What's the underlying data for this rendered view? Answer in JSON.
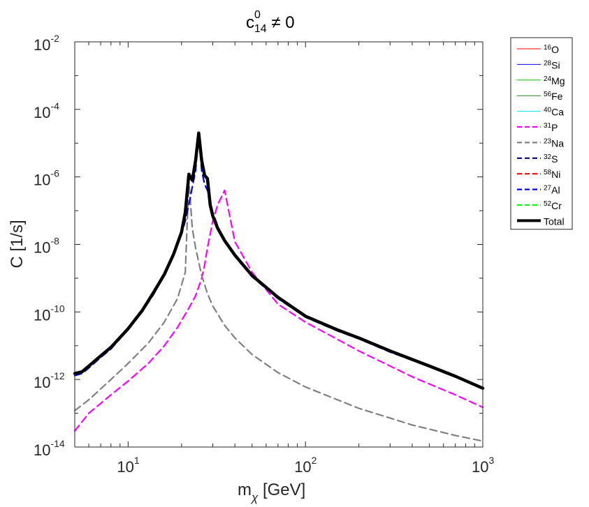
{
  "chart_data": {
    "type": "line",
    "title": {
      "base": "c",
      "sup": "0",
      "sub": "14",
      "rest": " ≠ 0"
    },
    "xlabel": {
      "base": "m",
      "sub": "χ",
      "rest": " [GeV]"
    },
    "ylabel": "C [1/s]",
    "xscale": "log",
    "yscale": "log",
    "xlim": [
      5,
      1000
    ],
    "ylim": [
      1e-14,
      0.01
    ],
    "x_ticks": [
      {
        "base": "10",
        "exp": "1"
      },
      {
        "base": "10",
        "exp": "2"
      },
      {
        "base": "10",
        "exp": "3"
      }
    ],
    "y_ticks": [
      {
        "base": "10",
        "exp": "-14"
      },
      {
        "base": "10",
        "exp": "-12"
      },
      {
        "base": "10",
        "exp": "-10"
      },
      {
        "base": "10",
        "exp": "-8"
      },
      {
        "base": "10",
        "exp": "-6"
      },
      {
        "base": "10",
        "exp": "-4"
      },
      {
        "base": "10",
        "exp": "-2"
      }
    ],
    "legend_position": "outside-right",
    "legend": [
      {
        "sup": "16",
        "el": "O",
        "color": "#ff0000",
        "style": "solid"
      },
      {
        "sup": "28",
        "el": "Si",
        "color": "#0000ff",
        "style": "solid"
      },
      {
        "sup": "24",
        "el": "Mg",
        "color": "#00c000",
        "style": "solid"
      },
      {
        "sup": "56",
        "el": "Fe",
        "color": "#208020",
        "style": "solid"
      },
      {
        "sup": "40",
        "el": "Ca",
        "color": "#00e5ee",
        "style": "solid"
      },
      {
        "sup": "31",
        "el": "P",
        "color": "#ff00ff",
        "style": "dashed"
      },
      {
        "sup": "23",
        "el": "Na",
        "color": "#808080",
        "style": "dashed"
      },
      {
        "sup": "32",
        "el": "S",
        "color": "#00007f",
        "style": "dashed"
      },
      {
        "sup": "58",
        "el": "Ni",
        "color": "#ff0000",
        "style": "dashed"
      },
      {
        "sup": "27",
        "el": "Al",
        "color": "#0000ff",
        "style": "dashed"
      },
      {
        "sup": "52",
        "el": "Cr",
        "color": "#00ff00",
        "style": "dashed"
      },
      {
        "sup": "",
        "el": "Total",
        "color": "#000000",
        "style": "thick"
      }
    ],
    "series": [
      {
        "name": "31P",
        "color": "#ff00ff",
        "style": "dashed",
        "x": [
          5,
          6,
          8,
          10,
          13,
          16,
          19,
          22,
          24,
          26,
          27,
          28,
          29,
          30,
          32,
          35,
          40,
          50,
          70,
          100,
          200,
          400,
          700,
          1000
        ],
        "y": [
          3e-14,
          1e-13,
          3.5e-13,
          9e-13,
          3e-12,
          1e-11,
          3.5e-11,
          1.3e-10,
          3e-10,
          1e-09,
          2.5e-09,
          8e-09,
          2e-08,
          5e-08,
          1.5e-07,
          4e-07,
          1.2e-08,
          1.5e-09,
          1.7e-10,
          5e-11,
          7e-12,
          1.2e-12,
          3.5e-13,
          1.5e-13
        ]
      },
      {
        "name": "23Na",
        "color": "#808080",
        "style": "dashed",
        "x": [
          5,
          6,
          8,
          10,
          13,
          16,
          19,
          21,
          22,
          23,
          24,
          25,
          26,
          28,
          30,
          35,
          40,
          50,
          70,
          100,
          200,
          400,
          700,
          1000
        ],
        "y": [
          1.2e-13,
          2.5e-13,
          1e-12,
          3e-12,
          1.2e-11,
          5e-11,
          2.5e-10,
          1.5e-09,
          8e-07,
          3e-08,
          8e-09,
          3e-09,
          1.2e-09,
          3.5e-10,
          1.5e-10,
          4e-11,
          1.7e-11,
          5.5e-12,
          1.6e-12,
          6e-13,
          1.4e-13,
          4.5e-14,
          2.2e-14,
          1.5e-14
        ]
      },
      {
        "name": "27Al",
        "color": "#0000ff",
        "style": "dashed",
        "x": [
          5,
          5.5,
          6,
          7,
          8,
          10,
          12,
          14,
          16,
          18,
          20,
          21,
          22,
          23,
          24,
          25,
          26,
          27,
          28,
          29,
          30,
          32,
          35,
          40,
          50,
          70,
          100,
          150,
          200,
          300,
          500,
          700,
          1000
        ],
        "y": [
          1.3e-12,
          1.5e-12,
          2.2e-12,
          4.5e-12,
          8e-12,
          3e-11,
          1e-10,
          3.5e-10,
          1.2e-09,
          4.5e-09,
          2e-08,
          5e-08,
          1.5e-07,
          5e-07,
          1.5e-06,
          1.8e-05,
          1.5e-06,
          6e-07,
          4e-07,
          2e-07,
          9e-08,
          3.5e-08,
          1.3e-08,
          4.5e-09,
          1.1e-09,
          2.5e-10,
          7e-11,
          2.8e-11,
          1.6e-11,
          6.5e-12,
          2.4e-12,
          1.2e-12,
          5.5e-13
        ]
      },
      {
        "name": "Total",
        "color": "#000000",
        "style": "thick",
        "x": [
          5,
          5.5,
          6,
          7,
          8,
          10,
          12,
          14,
          16,
          18,
          20,
          21,
          22,
          23,
          24,
          25,
          26,
          27,
          28,
          29,
          30,
          32,
          35,
          40,
          50,
          70,
          100,
          150,
          200,
          300,
          500,
          700,
          1000
        ],
        "y": [
          1.5e-12,
          1.7e-12,
          2.5e-12,
          5e-12,
          9e-12,
          3.2e-11,
          1.1e-10,
          4e-10,
          1.3e-09,
          5e-09,
          2.3e-08,
          9e-08,
          1.2e-06,
          8e-07,
          3e-06,
          2e-05,
          3e-06,
          1.1e-06,
          9e-07,
          1.5e-07,
          7e-08,
          3e-08,
          1.3e-08,
          4.8e-09,
          1.2e-09,
          2.7e-10,
          7.5e-11,
          3e-11,
          1.7e-11,
          7e-12,
          2.5e-12,
          1.25e-12,
          5.5e-13
        ]
      }
    ]
  }
}
